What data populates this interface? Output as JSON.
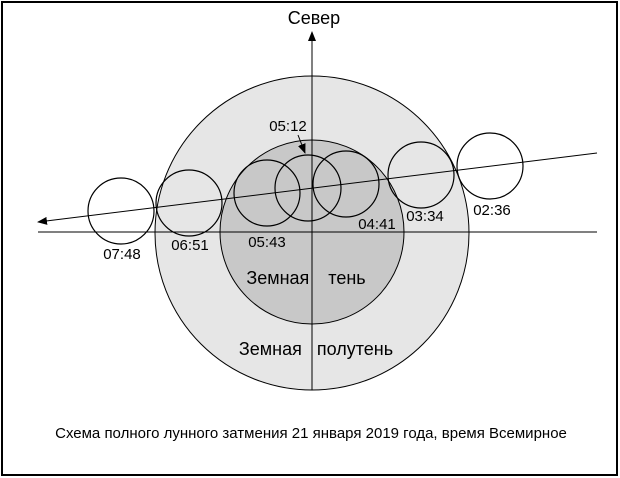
{
  "north_label": "Север",
  "umbra_label": "Земная тень",
  "penumbra_label": "Земная полутень",
  "moon_times": [
    "02:36",
    "03:34",
    "04:41",
    "05:12",
    "05:43",
    "06:51",
    "07:48"
  ],
  "caption": "Схема полного лунного затмения 21 января 2019 года, время Всемирное"
}
